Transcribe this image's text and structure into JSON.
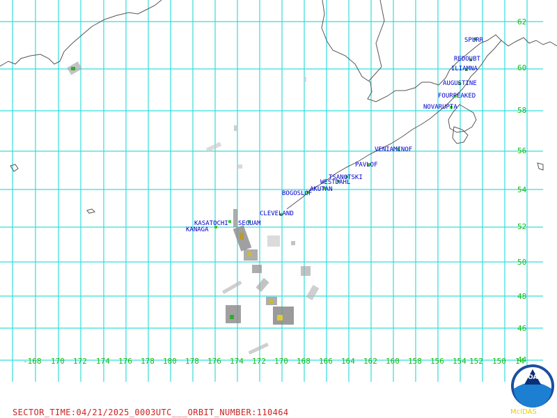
{
  "lat_labels": [
    "62",
    "60",
    "58",
    "56",
    "54",
    "52",
    "50",
    "48",
    "46",
    "44"
  ],
  "lon_labels": [
    "-168",
    "170",
    "172",
    "174",
    "176",
    "178",
    "180",
    "178",
    "176",
    "174",
    "172",
    "170",
    "168",
    "166",
    "164",
    "162",
    "160",
    "158",
    "156",
    "154",
    "152",
    "150",
    "14"
  ],
  "volcanoes": [
    {
      "name": "SPURR"
    },
    {
      "name": "REDOUBT"
    },
    {
      "name": "ILIAMNA"
    },
    {
      "name": "AUGUSTINE"
    },
    {
      "name": "FOURPEAKED"
    },
    {
      "name": "NOVARUPTA"
    },
    {
      "name": "VENIAMINOF"
    },
    {
      "name": "PAVLOF"
    },
    {
      "name": "TSANOTSKI"
    },
    {
      "name": "WESTDAHL"
    },
    {
      "name": "AKUTAN"
    },
    {
      "name": "BOGOSLOF"
    },
    {
      "name": "CLEVELAND"
    },
    {
      "name": "KASATOCHI"
    },
    {
      "name": "SEGUAM"
    },
    {
      "name": "KANAGA"
    }
  ],
  "footer": {
    "text": "SECTOR_TIME:04/21/2025_0003UTC___ORBIT_NUMBER:110464"
  },
  "logo": {
    "text": "NOAA",
    "credit": "McIDAS"
  },
  "colors": {
    "grid": "#33dddd",
    "coast": "#555555",
    "lat_lon_labels": "#11bb11",
    "volcano_labels": "#0000cc",
    "footer": "#cc2222"
  }
}
